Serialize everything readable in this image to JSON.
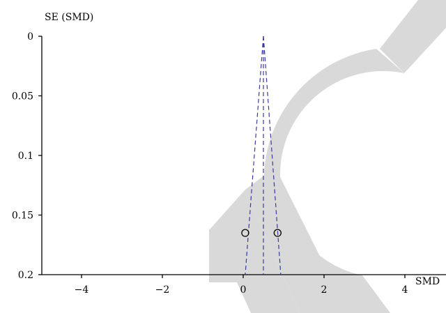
{
  "chart_data": {
    "type": "scatter",
    "title": "",
    "xlabel": "SMD",
    "ylabel": "SE (SMD)",
    "xlim": [
      -5,
      5
    ],
    "ylim": [
      0,
      0.2
    ],
    "y_inverted": true,
    "grid": false,
    "xticks": [
      -4,
      -2,
      0,
      2,
      4
    ],
    "xtick_labels": [
      "−4",
      "−2",
      "0",
      "2",
      "4"
    ],
    "yticks": [
      0,
      0.05,
      0.1,
      0.15,
      0.2
    ],
    "ytick_labels": [
      "0",
      "0.05",
      "0.1",
      "0.15",
      "0.2"
    ],
    "points": [
      {
        "x": 0.05,
        "y": 0.165
      },
      {
        "x": 0.85,
        "y": 0.165
      }
    ],
    "pooled_estimate": 0.5,
    "funnel": {
      "apex": {
        "x": 0.5,
        "y": 0
      },
      "lower_left": {
        "x": 0.05,
        "y": 0.2
      },
      "lower_right": {
        "x": 0.93,
        "y": 0.2
      }
    },
    "colors": {
      "funnel_lines": "#3a3a9a",
      "points": "#000000",
      "axes": "#000000",
      "watermark": "#d9d9d9"
    },
    "watermark_icon": "retracted-watermark-icon"
  }
}
